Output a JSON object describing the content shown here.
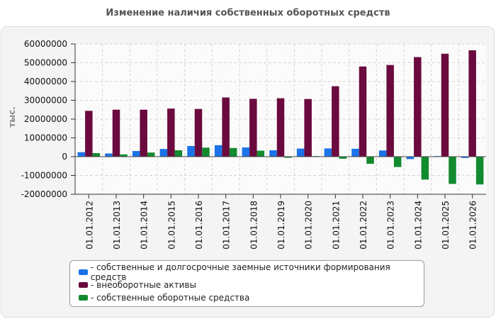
{
  "chart_data": {
    "type": "bar",
    "title": "Изменение наличия собственных оборотных средств",
    "ylabel": "тыс.",
    "xlabel": "",
    "ylim": [
      -20000000,
      60000000
    ],
    "yticks": [
      -20000000,
      -10000000,
      0,
      10000000,
      20000000,
      30000000,
      40000000,
      50000000,
      60000000
    ],
    "grid": true,
    "legend_position": "bottom",
    "categories": [
      "01.01.2012",
      "01.01.2013",
      "01.01.2014",
      "01.01.2015",
      "01.01.2016",
      "01.01.2017",
      "01.01.2018",
      "01.01.2019",
      "01.01.2020",
      "01.01.2021",
      "01.01.2022",
      "01.01.2023",
      "01.01.2024",
      "01.01.2025",
      "01.01.2026"
    ],
    "series": [
      {
        "name": "- собственные и долгосрочные заемные источники формирования средств",
        "color": "#1a73e8",
        "values": [
          2400000,
          1700000,
          3000000,
          4100000,
          5700000,
          6100000,
          4900000,
          3400000,
          4300000,
          4400000,
          4200000,
          3300000,
          -1300000,
          300000,
          -700000
        ]
      },
      {
        "name": "- внеоборотные активы",
        "color": "#6b0a3e",
        "values": [
          24400000,
          25000000,
          25000000,
          25600000,
          25400000,
          31500000,
          30800000,
          31100000,
          30700000,
          37500000,
          48000000,
          48800000,
          53000000,
          54800000,
          56600000
        ]
      },
      {
        "name": "- собственные оборотные средства",
        "color": "#128a2e",
        "values": [
          1900000,
          1200000,
          2200000,
          3400000,
          4800000,
          4600000,
          3200000,
          -600000,
          300000,
          -1100000,
          -3800000,
          -5500000,
          -12200000,
          -14500000,
          -14800000
        ]
      }
    ]
  }
}
